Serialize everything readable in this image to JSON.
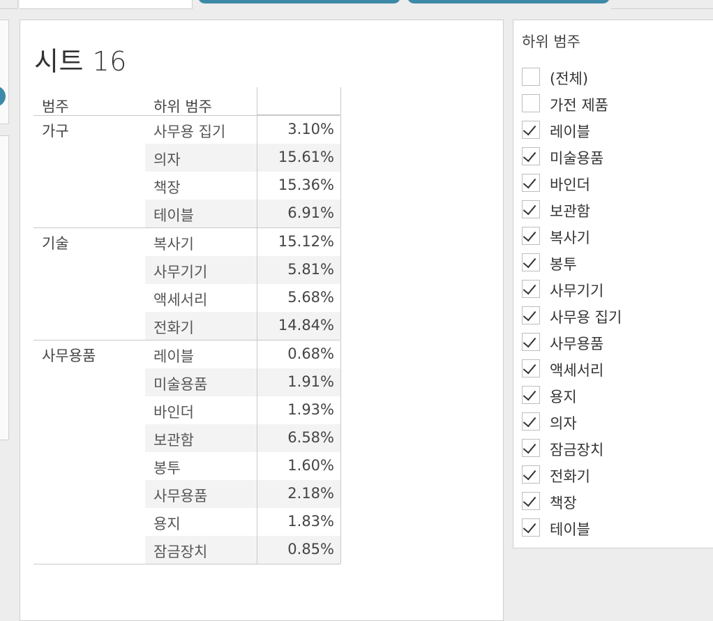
{
  "sheet": {
    "title": "시트 16"
  },
  "table": {
    "headers": {
      "category": "범주",
      "subcategory": "하위 범주"
    },
    "groups": [
      {
        "category": "가구",
        "rows": [
          {
            "sub": "사무용 집기",
            "value": "3.10%"
          },
          {
            "sub": "의자",
            "value": "15.61%"
          },
          {
            "sub": "책장",
            "value": "15.36%"
          },
          {
            "sub": "테이블",
            "value": "6.91%"
          }
        ]
      },
      {
        "category": "기술",
        "rows": [
          {
            "sub": "복사기",
            "value": "15.12%"
          },
          {
            "sub": "사무기기",
            "value": "5.81%"
          },
          {
            "sub": "액세서리",
            "value": "5.68%"
          },
          {
            "sub": "전화기",
            "value": "14.84%"
          }
        ]
      },
      {
        "category": "사무용품",
        "rows": [
          {
            "sub": "레이블",
            "value": "0.68%"
          },
          {
            "sub": "미술용품",
            "value": "1.91%"
          },
          {
            "sub": "바인더",
            "value": "1.93%"
          },
          {
            "sub": "보관함",
            "value": "6.58%"
          },
          {
            "sub": "봉투",
            "value": "1.60%"
          },
          {
            "sub": "사무용품",
            "value": "2.18%"
          },
          {
            "sub": "용지",
            "value": "1.83%"
          },
          {
            "sub": "잠금장치",
            "value": "0.85%"
          }
        ]
      }
    ]
  },
  "filter": {
    "title": "하위 범주",
    "items": [
      {
        "label": "(전체)",
        "checked": false
      },
      {
        "label": "가전 제품",
        "checked": false
      },
      {
        "label": "레이블",
        "checked": true
      },
      {
        "label": "미술용품",
        "checked": true
      },
      {
        "label": "바인더",
        "checked": true
      },
      {
        "label": "보관함",
        "checked": true
      },
      {
        "label": "복사기",
        "checked": true
      },
      {
        "label": "봉투",
        "checked": true
      },
      {
        "label": "사무기기",
        "checked": true
      },
      {
        "label": "사무용 집기",
        "checked": true
      },
      {
        "label": "사무용품",
        "checked": true
      },
      {
        "label": "액세서리",
        "checked": true
      },
      {
        "label": "용지",
        "checked": true
      },
      {
        "label": "의자",
        "checked": true
      },
      {
        "label": "잠금장치",
        "checked": true
      },
      {
        "label": "전화기",
        "checked": true
      },
      {
        "label": "책장",
        "checked": true
      },
      {
        "label": "테이블",
        "checked": true
      }
    ]
  },
  "colors": {
    "accent": "#3d8aa8",
    "alt_row": "#f3f3f3",
    "border": "#c8c8c8"
  }
}
